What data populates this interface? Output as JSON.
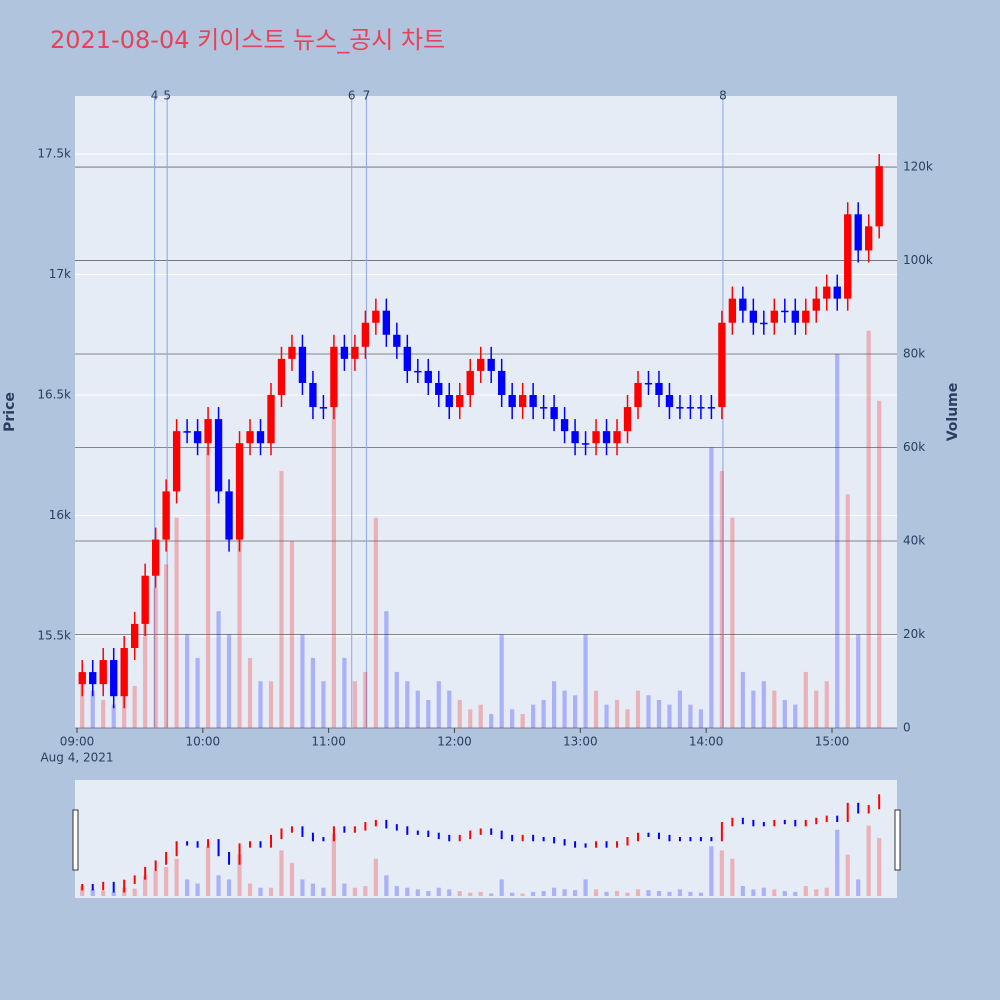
{
  "chart_data": {
    "type": "candlestick",
    "title": "2021-08-04 키이스트 뉴스_공시 차트",
    "y_label": "Price",
    "y2_label": "Volume",
    "date_label": "Aug 4, 2021",
    "up_color": "#ff0000",
    "down_color": "#0000ff",
    "title_color": "#e8425a",
    "x": [
      "09:00",
      "09:05",
      "09:10",
      "09:15",
      "09:20",
      "09:25",
      "09:30",
      "09:35",
      "09:40",
      "09:45",
      "09:50",
      "09:55",
      "10:00",
      "10:05",
      "10:10",
      "10:15",
      "10:20",
      "10:25",
      "10:30",
      "10:35",
      "10:40",
      "10:45",
      "10:50",
      "10:55",
      "11:00",
      "11:05",
      "11:10",
      "11:15",
      "11:20",
      "11:25",
      "11:30",
      "11:35",
      "11:40",
      "11:45",
      "11:50",
      "11:55",
      "12:00",
      "12:05",
      "12:10",
      "12:15",
      "12:20",
      "12:25",
      "12:30",
      "12:35",
      "12:40",
      "12:45",
      "12:50",
      "12:55",
      "13:00",
      "13:05",
      "13:10",
      "13:15",
      "13:20",
      "13:25",
      "13:30",
      "13:35",
      "13:40",
      "13:45",
      "13:50",
      "13:55",
      "14:00",
      "14:05",
      "14:10",
      "14:15",
      "14:20",
      "14:25",
      "14:30",
      "14:35",
      "14:40",
      "14:45",
      "14:50",
      "14:55",
      "15:00",
      "15:05",
      "15:10",
      "15:15",
      "15:20"
    ],
    "open": [
      15300,
      15350,
      15300,
      15400,
      15250,
      15450,
      15550,
      15750,
      15900,
      16100,
      16350,
      16350,
      16300,
      16400,
      16100,
      15900,
      16300,
      16350,
      16300,
      16500,
      16650,
      16700,
      16550,
      16450,
      16450,
      16700,
      16650,
      16700,
      16800,
      16850,
      16750,
      16700,
      16600,
      16600,
      16550,
      16500,
      16450,
      16500,
      16600,
      16650,
      16600,
      16500,
      16450,
      16500,
      16450,
      16450,
      16400,
      16350,
      16300,
      16300,
      16350,
      16300,
      16350,
      16450,
      16550,
      16550,
      16500,
      16450,
      16450,
      16450,
      16450,
      16450,
      16800,
      16900,
      16850,
      16800,
      16800,
      16850,
      16850,
      16800,
      16850,
      16900,
      16950,
      16900,
      17250,
      17100,
      17200
    ],
    "high": [
      15400,
      15400,
      15450,
      15450,
      15500,
      15600,
      15800,
      15950,
      16150,
      16400,
      16400,
      16400,
      16450,
      16450,
      16150,
      16350,
      16400,
      16400,
      16550,
      16700,
      16750,
      16750,
      16600,
      16500,
      16750,
      16750,
      16750,
      16850,
      16900,
      16900,
      16800,
      16750,
      16650,
      16650,
      16600,
      16550,
      16550,
      16650,
      16700,
      16700,
      16650,
      16550,
      16550,
      16550,
      16500,
      16500,
      16450,
      16400,
      16350,
      16400,
      16400,
      16400,
      16500,
      16600,
      16600,
      16600,
      16550,
      16500,
      16500,
      16500,
      16500,
      16850,
      16950,
      16950,
      16900,
      16850,
      16900,
      16900,
      16900,
      16900,
      16950,
      17000,
      17000,
      17300,
      17300,
      17250,
      17500
    ],
    "low": [
      15250,
      15250,
      15250,
      15200,
      15200,
      15400,
      15500,
      15700,
      15850,
      16050,
      16300,
      16250,
      16250,
      16050,
      15850,
      15850,
      16250,
      16250,
      16250,
      16450,
      16600,
      16500,
      16400,
      16400,
      16400,
      16600,
      16600,
      16650,
      16750,
      16700,
      16650,
      16550,
      16550,
      16500,
      16450,
      16400,
      16400,
      16450,
      16550,
      16550,
      16450,
      16400,
      16400,
      16400,
      16400,
      16350,
      16300,
      16250,
      16250,
      16250,
      16250,
      16250,
      16300,
      16400,
      16500,
      16450,
      16400,
      16400,
      16400,
      16400,
      16400,
      16400,
      16750,
      16800,
      16750,
      16750,
      16750,
      16800,
      16750,
      16750,
      16800,
      16850,
      16850,
      16850,
      17050,
      17050,
      17150
    ],
    "close": [
      15350,
      15300,
      15400,
      15250,
      15450,
      15550,
      15750,
      15900,
      16100,
      16350,
      16350,
      16300,
      16400,
      16100,
      15900,
      16300,
      16350,
      16300,
      16500,
      16650,
      16700,
      16550,
      16450,
      16450,
      16700,
      16650,
      16700,
      16800,
      16850,
      16750,
      16700,
      16600,
      16600,
      16550,
      16500,
      16450,
      16500,
      16600,
      16650,
      16600,
      16500,
      16450,
      16500,
      16450,
      16450,
      16400,
      16350,
      16300,
      16300,
      16350,
      16300,
      16350,
      16450,
      16550,
      16550,
      16500,
      16450,
      16450,
      16450,
      16450,
      16450,
      16800,
      16900,
      16850,
      16800,
      16800,
      16850,
      16850,
      16800,
      16850,
      16900,
      16950,
      16900,
      17250,
      17100,
      17200,
      17450
    ],
    "volume": [
      12000,
      8000,
      6000,
      5000,
      10000,
      9000,
      25000,
      30000,
      35000,
      45000,
      20000,
      15000,
      60000,
      25000,
      20000,
      50000,
      15000,
      10000,
      10000,
      55000,
      40000,
      20000,
      15000,
      10000,
      75000,
      15000,
      10000,
      12000,
      45000,
      25000,
      12000,
      10000,
      8000,
      6000,
      10000,
      8000,
      6000,
      4000,
      5000,
      3000,
      20000,
      4000,
      3000,
      5000,
      6000,
      10000,
      8000,
      7000,
      20000,
      8000,
      5000,
      6000,
      4000,
      8000,
      7000,
      6000,
      5000,
      8000,
      5000,
      4000,
      60000,
      55000,
      45000,
      12000,
      8000,
      10000,
      8000,
      6000,
      5000,
      12000,
      8000,
      10000,
      80000,
      50000,
      20000,
      85000,
      70000
    ],
    "markers": [
      {
        "label": "4",
        "time": "09:37"
      },
      {
        "label": "5",
        "time": "09:43"
      },
      {
        "label": "6",
        "time": "11:11"
      },
      {
        "label": "7",
        "time": "11:18"
      },
      {
        "label": "8",
        "time": "14:08"
      }
    ],
    "xlim": [
      "09:00",
      "15:31"
    ],
    "xticks": [
      "09:00",
      "10:00",
      "11:00",
      "12:00",
      "13:00",
      "14:00",
      "15:00"
    ],
    "ylim": [
      15118,
      17741
    ],
    "yticks": [
      {
        "value": 15500,
        "label": "15.5k"
      },
      {
        "value": 16000,
        "label": "16k"
      },
      {
        "value": 16500,
        "label": "16.5k"
      },
      {
        "value": 17000,
        "label": "17k"
      },
      {
        "value": 17500,
        "label": "17.5k"
      }
    ],
    "y2lim": [
      0,
      135200
    ],
    "y2ticks": [
      0,
      {
        "value": 20000,
        "label": "20k"
      },
      {
        "value": 40000,
        "label": "40k"
      },
      {
        "value": 60000,
        "label": "60k"
      },
      {
        "value": 80000,
        "label": "80k"
      },
      {
        "value": 100000,
        "label": "100k"
      },
      {
        "value": 120000,
        "label": "120k"
      }
    ]
  }
}
